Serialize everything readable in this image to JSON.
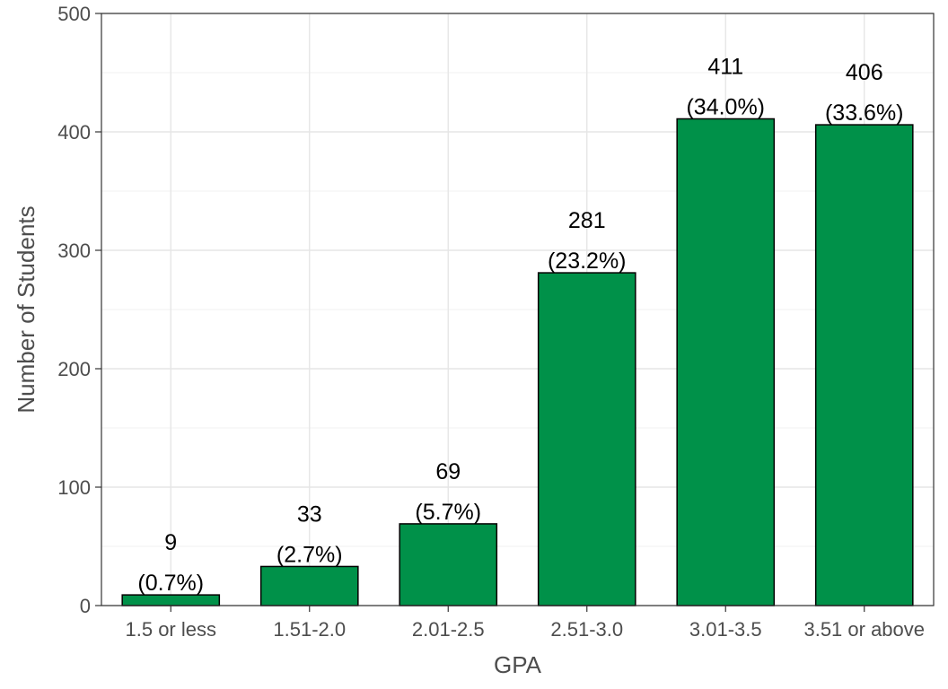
{
  "chart_data": {
    "type": "bar",
    "title": "",
    "xlabel": "GPA",
    "ylabel": "Number of Students",
    "categories": [
      "1.5 or less",
      "1.51-2.0",
      "2.01-2.5",
      "2.51-3.0",
      "3.01-3.5",
      "3.51 or above"
    ],
    "values": [
      9,
      33,
      69,
      281,
      411,
      406
    ],
    "percent_labels": [
      "(0.7%)",
      "(2.7%)",
      "(5.7%)",
      "(23.2%)",
      "(34.0%)",
      "(33.6%)"
    ],
    "ylim": [
      0,
      500
    ],
    "yticks": [
      0,
      100,
      200,
      300,
      400,
      500
    ],
    "grid": true,
    "bar_color": "#009149",
    "bar_outline": "#000000"
  }
}
